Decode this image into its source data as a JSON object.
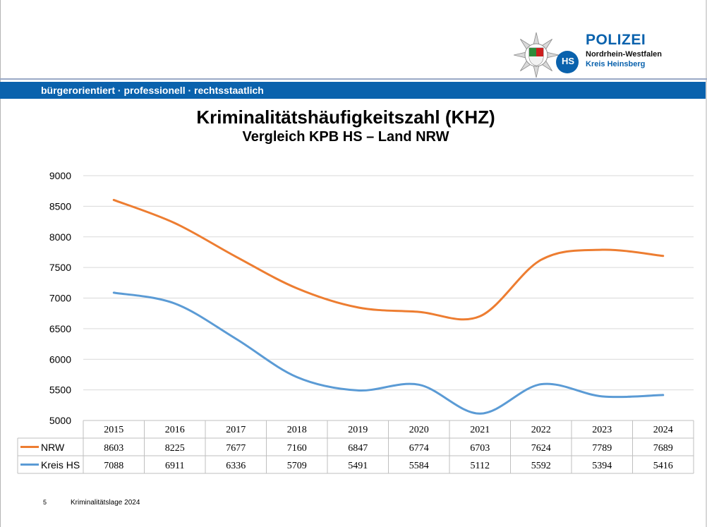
{
  "header": {
    "banner_text": "bürgerorientiert · professionell · rechtsstaatlich",
    "logo": {
      "brand": "POLIZEI",
      "state": "Nordrhein-Westfalen",
      "district": "Kreis Heinsberg",
      "badge_text": "HS"
    }
  },
  "chart_data": {
    "type": "line",
    "title": "Kriminalitätshäufigkeitszahl (KHZ)",
    "subtitle": "Vergleich KPB HS – Land NRW",
    "categories": [
      "2015",
      "2016",
      "2017",
      "2018",
      "2019",
      "2020",
      "2021",
      "2022",
      "2023",
      "2024"
    ],
    "series": [
      {
        "name": "NRW",
        "color": "#ed7d31",
        "values": [
          8603,
          8225,
          7677,
          7160,
          6847,
          6774,
          6703,
          7624,
          7789,
          7689
        ]
      },
      {
        "name": "Kreis HS",
        "color": "#5b9bd5",
        "values": [
          7088,
          6911,
          6336,
          5709,
          5491,
          5584,
          5112,
          5592,
          5394,
          5416
        ]
      }
    ],
    "ylim": [
      5000,
      9000
    ],
    "yticks": [
      5000,
      5500,
      6000,
      6500,
      7000,
      7500,
      8000,
      8500,
      9000
    ],
    "grid": true,
    "legend": "data-table"
  },
  "footer": {
    "slide_number": "5",
    "text": "Kriminalitätslage 2024"
  },
  "colors": {
    "banner": "#0a62ad",
    "brand_blue": "#0a62ad"
  }
}
